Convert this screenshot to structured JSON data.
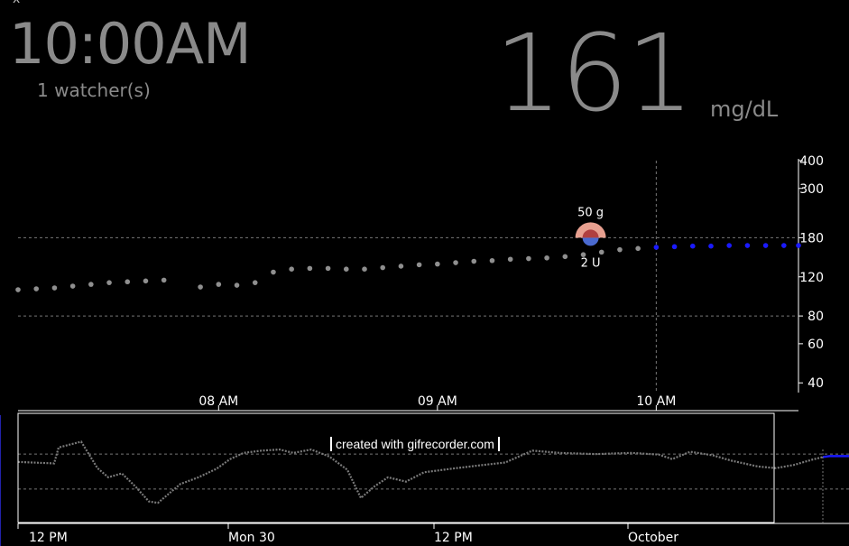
{
  "header": {
    "time": "10:00AM",
    "watchers": "1 watcher(s)",
    "bg_value": "161",
    "units": "mg/dL"
  },
  "close_icon": "x-icon",
  "watermark": "created with gifrecorder.com",
  "colors": {
    "background": "#000000",
    "text_gray": "#8a8a8a",
    "entry_dot": "#8f8f8f",
    "forecast_dot": "#1a1aff",
    "carb_fill": "#e8a090",
    "insulin_fill": "#4a6ad0"
  },
  "chart_data": [
    {
      "type": "scatter",
      "name": "main-glucose-chart",
      "y_scale": "log",
      "y_ticks": [
        40,
        60,
        80,
        120,
        180,
        300,
        400
      ],
      "ylim": [
        30,
        400
      ],
      "x_ticks": [
        "08 AM",
        "09 AM",
        "10 AM"
      ],
      "x_tick_minutes": [
        480,
        540,
        600
      ],
      "xlim_minutes": [
        425,
        639
      ],
      "grid": {
        "horizontal": [
          80,
          180
        ],
        "vertical_now_minute": 600
      },
      "now_minute": 600,
      "treatment": {
        "minute": 582,
        "carbs": "50 g",
        "insulin": "2 U",
        "glucose": 180
      },
      "history": {
        "minutes": [
          425,
          430,
          435,
          440,
          445,
          450,
          455,
          460,
          465,
          475,
          480,
          485,
          490,
          495,
          500,
          505,
          510,
          515,
          520,
          525,
          530,
          535,
          540,
          545,
          550,
          555,
          560,
          565,
          570,
          575,
          580,
          585,
          590,
          595
        ],
        "values": [
          105,
          106,
          107,
          109,
          111,
          113,
          114,
          115,
          116,
          108,
          111,
          110,
          113,
          126,
          130,
          131,
          131,
          130,
          130,
          132,
          134,
          136,
          137,
          139,
          141,
          142,
          144,
          145,
          146,
          148,
          151,
          155,
          159,
          161
        ]
      },
      "forecast": {
        "minutes": [
          600,
          605,
          610,
          615,
          620,
          625,
          630,
          635,
          639
        ],
        "values": [
          163,
          164,
          165,
          165,
          166,
          166,
          166,
          166,
          166
        ]
      }
    },
    {
      "type": "line",
      "name": "navigator-chart",
      "x_ticks": [
        "12 PM",
        "Mon 30",
        "12 PM",
        "October"
      ],
      "grid": {
        "horizontal": [
          180,
          80
        ]
      },
      "ylim": [
        40,
        400
      ],
      "series_points": [
        [
          20,
          150
        ],
        [
          60,
          145
        ],
        [
          65,
          210
        ],
        [
          90,
          240
        ],
        [
          108,
          130
        ],
        [
          120,
          105
        ],
        [
          135,
          115
        ],
        [
          150,
          85
        ],
        [
          165,
          60
        ],
        [
          175,
          58
        ],
        [
          200,
          90
        ],
        [
          220,
          105
        ],
        [
          240,
          128
        ],
        [
          255,
          160
        ],
        [
          270,
          185
        ],
        [
          290,
          195
        ],
        [
          310,
          200
        ],
        [
          325,
          185
        ],
        [
          345,
          200
        ],
        [
          365,
          170
        ],
        [
          385,
          125
        ],
        [
          400,
          65
        ],
        [
          415,
          85
        ],
        [
          430,
          105
        ],
        [
          450,
          95
        ],
        [
          470,
          118
        ],
        [
          500,
          128
        ],
        [
          530,
          138
        ],
        [
          560,
          148
        ],
        [
          590,
          195
        ],
        [
          620,
          185
        ],
        [
          660,
          180
        ],
        [
          700,
          185
        ],
        [
          730,
          178
        ],
        [
          745,
          160
        ],
        [
          765,
          190
        ],
        [
          790,
          175
        ],
        [
          810,
          155
        ],
        [
          840,
          135
        ],
        [
          860,
          130
        ],
        [
          880,
          140
        ],
        [
          900,
          158
        ],
        [
          912,
          168
        ]
      ],
      "forecast_points": [
        [
          912,
          168
        ],
        [
          920,
          172
        ],
        [
          941,
          172
        ]
      ]
    }
  ]
}
